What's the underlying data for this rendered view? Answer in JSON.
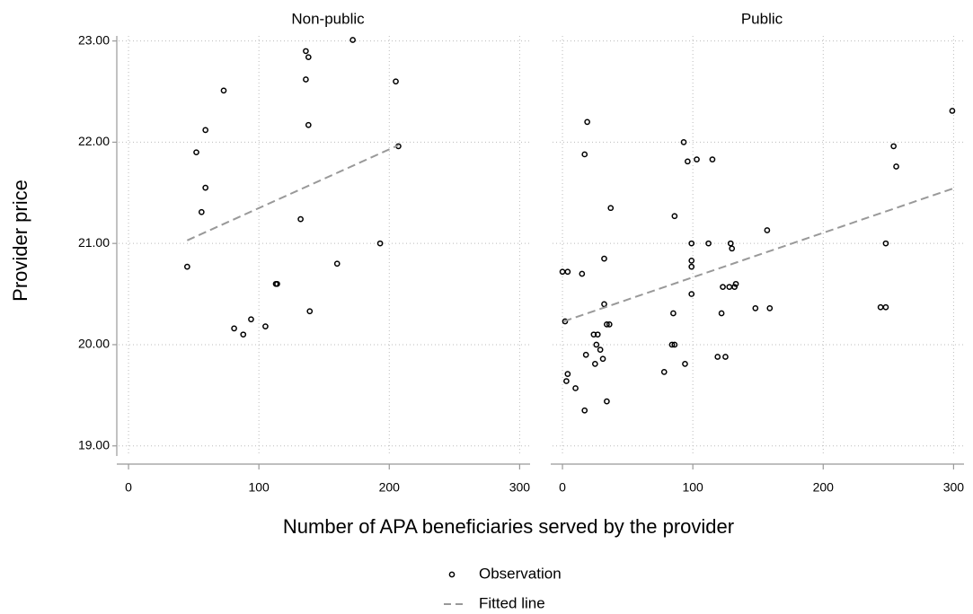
{
  "chart_data": [
    {
      "type": "scatter",
      "title": "Non-public",
      "xlabel": "Number of APA beneficiaries served by the provider",
      "ylabel": "Provider price",
      "xlim": [
        -9,
        308
      ],
      "xticks": [
        0,
        100,
        200,
        300
      ],
      "ylim": [
        18.9,
        23.05
      ],
      "yticks": [
        {
          "value": 19,
          "label": "19.00"
        },
        {
          "value": 20,
          "label": "20.00"
        },
        {
          "value": 21,
          "label": "21.00"
        },
        {
          "value": 22,
          "label": "22.00"
        },
        {
          "value": 23,
          "label": "23.00"
        }
      ],
      "grid": true,
      "series": [
        {
          "name": "Observation",
          "type": "scatter",
          "color": "#000000",
          "x": [
            73,
            59,
            52,
            59,
            56,
            45,
            136,
            138,
            136,
            172,
            138,
            205,
            207,
            132,
            193,
            160,
            113,
            114,
            139,
            81,
            88,
            94,
            105
          ],
          "values": [
            22.51,
            22.12,
            21.9,
            21.55,
            21.31,
            20.77,
            22.9,
            22.84,
            22.62,
            23.01,
            22.17,
            22.6,
            21.96,
            21.24,
            21.0,
            20.8,
            20.6,
            20.6,
            20.33,
            20.16,
            20.1,
            20.25,
            20.18
          ]
        },
        {
          "name": "Fitted line",
          "type": "line",
          "color": "#999999",
          "x": [
            45,
            207
          ],
          "values": [
            21.03,
            21.97
          ]
        }
      ]
    },
    {
      "type": "scatter",
      "title": "Public",
      "xlim": [
        -9,
        308
      ],
      "xticks": [
        0,
        100,
        200,
        300
      ],
      "grid": true,
      "series": [
        {
          "type": "scatter",
          "color": "#000000",
          "x": [
            19,
            17,
            93,
            96,
            103,
            115,
            299,
            254,
            256,
            37,
            86,
            157,
            99,
            112,
            129,
            130,
            248,
            0,
            4,
            15,
            32,
            2,
            32,
            34,
            36,
            24,
            27,
            26,
            18,
            29,
            31,
            25,
            4,
            3,
            10,
            17,
            34,
            99,
            99,
            99,
            85,
            84,
            86,
            94,
            78,
            123,
            128,
            132,
            133,
            122,
            119,
            125,
            148,
            159,
            244,
            248
          ],
          "values": [
            22.2,
            21.88,
            22.0,
            21.81,
            21.83,
            21.83,
            22.31,
            21.96,
            21.76,
            21.35,
            21.27,
            21.13,
            21.0,
            21.0,
            21.0,
            20.95,
            21.0,
            20.72,
            20.72,
            20.7,
            20.85,
            20.23,
            20.4,
            20.2,
            20.2,
            20.1,
            20.1,
            20.0,
            19.9,
            19.95,
            19.86,
            19.81,
            19.71,
            19.64,
            19.57,
            19.35,
            19.44,
            20.5,
            20.77,
            20.83,
            20.31,
            20.0,
            20.0,
            19.81,
            19.73,
            20.57,
            20.57,
            20.57,
            20.6,
            20.31,
            19.88,
            19.88,
            20.36,
            20.36,
            20.37,
            20.37
          ]
        },
        {
          "type": "line",
          "color": "#999999",
          "x": [
            1,
            299
          ],
          "values": [
            20.23,
            21.54
          ]
        }
      ]
    }
  ]
}
